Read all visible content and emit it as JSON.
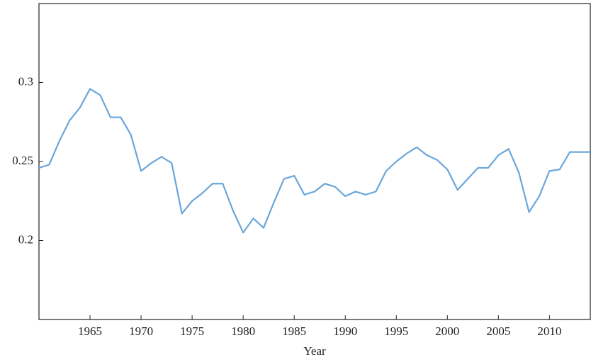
{
  "chart_data": {
    "type": "line",
    "x_label": "Year",
    "x": [
      1960,
      1961,
      1962,
      1963,
      1964,
      1965,
      1966,
      1967,
      1968,
      1969,
      1970,
      1971,
      1972,
      1973,
      1974,
      1975,
      1976,
      1977,
      1978,
      1979,
      1980,
      1981,
      1982,
      1983,
      1984,
      1985,
      1986,
      1987,
      1988,
      1989,
      1990,
      1991,
      1992,
      1993,
      1994,
      1995,
      1996,
      1997,
      1998,
      1999,
      2000,
      2001,
      2002,
      2003,
      2004,
      2005,
      2006,
      2007,
      2008,
      2009,
      2010,
      2011,
      2012,
      2013,
      2014
    ],
    "series": [
      {
        "color": "#6aa6db",
        "values": [
          0.246,
          0.248,
          0.263,
          0.276,
          0.284,
          0.296,
          0.292,
          0.278,
          0.278,
          0.267,
          0.244,
          0.249,
          0.253,
          0.249,
          0.217,
          0.225,
          0.23,
          0.236,
          0.236,
          0.219,
          0.205,
          0.214,
          0.208,
          0.224,
          0.239,
          0.241,
          0.229,
          0.231,
          0.236,
          0.234,
          0.228,
          0.231,
          0.229,
          0.231,
          0.244,
          0.25,
          0.255,
          0.259,
          0.254,
          0.251,
          0.245,
          0.232,
          0.239,
          0.246,
          0.246,
          0.254,
          0.258,
          0.243,
          0.218,
          0.228,
          0.244,
          0.245,
          0.256,
          0.256,
          0.256
        ]
      }
    ],
    "xlim": [
      1960,
      2014
    ],
    "xticks": [
      1965,
      1970,
      1975,
      1980,
      1985,
      1990,
      1995,
      2000,
      2005,
      2010
    ],
    "ylim": [
      0.15,
      0.35
    ],
    "yticks": [
      0.2,
      0.25,
      0.3
    ]
  }
}
